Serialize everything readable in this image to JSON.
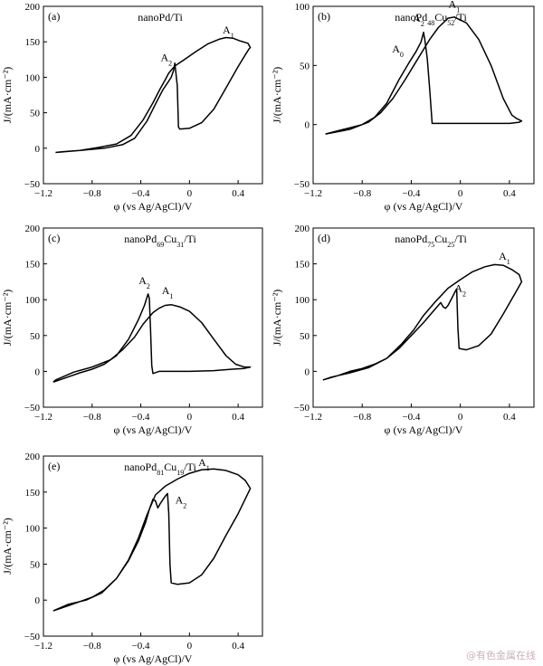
{
  "watermark": "@有色金属在线",
  "chart_data": [
    {
      "panel": "(a)",
      "title": "nanoPd/Ti",
      "title_parts": [
        {
          "t": "nanoPd/Ti"
        }
      ],
      "type": "line",
      "xlabel": "φ (vs Ag/AgCl)/V",
      "ylabel": "J/(mA·cm⁻²)",
      "xlim": [
        -1.2,
        0.6
      ],
      "ylim": [
        -50,
        200
      ],
      "xticks": [
        -1.2,
        -0.8,
        -0.4,
        0,
        0.4
      ],
      "yticks": [
        -50,
        0,
        50,
        100,
        150,
        200
      ],
      "series": [
        {
          "points": [
            [
              -1.1,
              -6
            ],
            [
              -0.9,
              -3
            ],
            [
              -0.7,
              0
            ],
            [
              -0.55,
              5
            ],
            [
              -0.45,
              14
            ],
            [
              -0.35,
              38
            ],
            [
              -0.28,
              62
            ],
            [
              -0.22,
              82
            ],
            [
              -0.18,
              92
            ],
            [
              -0.15,
              100
            ],
            [
              -0.13,
              110
            ],
            [
              -0.12,
              120
            ],
            [
              -0.1,
              88
            ],
            [
              -0.09,
              30
            ],
            [
              -0.08,
              27
            ],
            [
              0,
              28
            ],
            [
              0.1,
              36
            ],
            [
              0.2,
              55
            ],
            [
              0.3,
              85
            ],
            [
              0.4,
              115
            ],
            [
              0.46,
              132
            ],
            [
              0.49,
              140
            ],
            [
              0.5,
              142
            ],
            [
              0.48,
              148
            ],
            [
              0.42,
              151
            ],
            [
              0.36,
              155
            ],
            [
              0.3,
              156
            ],
            [
              0.25,
              154
            ],
            [
              0.15,
              147
            ],
            [
              0.05,
              136
            ],
            [
              -0.05,
              124
            ],
            [
              -0.12,
              116
            ],
            [
              -0.17,
              106
            ],
            [
              -0.2,
              96
            ],
            [
              -0.24,
              84
            ],
            [
              -0.3,
              64
            ],
            [
              -0.38,
              40
            ],
            [
              -0.48,
              18
            ],
            [
              -0.6,
              6
            ],
            [
              -0.75,
              1
            ],
            [
              -0.9,
              -3
            ],
            [
              -1.05,
              -5
            ],
            [
              -1.1,
              -6
            ]
          ]
        }
      ],
      "annotations": [
        {
          "base": "A",
          "sub": "1",
          "x": 0.32,
          "y": 162
        },
        {
          "base": "A",
          "sub": "2",
          "x": -0.19,
          "y": 123
        }
      ]
    },
    {
      "panel": "(b)",
      "title": "nanoPd48Cu52/Ti",
      "title_parts": [
        {
          "t": "nanoPd"
        },
        {
          "t": "48",
          "sub": true
        },
        {
          "t": "Cu"
        },
        {
          "t": "52",
          "sub": true
        },
        {
          "t": "/Ti"
        }
      ],
      "type": "line",
      "xlabel": "φ (vs Ag/AgCl)/V",
      "ylabel": "J/(mA·cm⁻²)",
      "xlim": [
        -1.2,
        0.6
      ],
      "ylim": [
        -50,
        100
      ],
      "xticks": [
        -1.2,
        -0.8,
        -0.4,
        0,
        0.4
      ],
      "yticks": [
        -50,
        0,
        50,
        100
      ],
      "series": [
        {
          "points": [
            [
              -1.1,
              -8
            ],
            [
              -0.95,
              -4
            ],
            [
              -0.8,
              0
            ],
            [
              -0.7,
              6
            ],
            [
              -0.6,
              18
            ],
            [
              -0.5,
              38
            ],
            [
              -0.42,
              52
            ],
            [
              -0.36,
              62
            ],
            [
              -0.32,
              70
            ],
            [
              -0.3,
              78
            ],
            [
              -0.29,
              72
            ],
            [
              -0.27,
              56
            ],
            [
              -0.25,
              30
            ],
            [
              -0.23,
              1
            ],
            [
              -0.2,
              1
            ],
            [
              0,
              1
            ],
            [
              0.2,
              1
            ],
            [
              0.4,
              1
            ],
            [
              0.48,
              2
            ],
            [
              0.5,
              3
            ],
            [
              0.46,
              5
            ],
            [
              0.42,
              8
            ],
            [
              0.35,
              22
            ],
            [
              0.25,
              50
            ],
            [
              0.15,
              72
            ],
            [
              0.05,
              86
            ],
            [
              -0.05,
              91
            ],
            [
              -0.1,
              90
            ],
            [
              -0.18,
              82
            ],
            [
              -0.25,
              72
            ],
            [
              -0.35,
              55
            ],
            [
              -0.45,
              38
            ],
            [
              -0.55,
              22
            ],
            [
              -0.65,
              10
            ],
            [
              -0.75,
              2
            ],
            [
              -0.9,
              -4
            ],
            [
              -1.1,
              -8
            ]
          ]
        }
      ],
      "annotations": [
        {
          "base": "A",
          "sub": "1",
          "x": -0.05,
          "y": 99
        },
        {
          "base": "A",
          "sub": "2",
          "x": -0.34,
          "y": 87
        },
        {
          "base": "A",
          "sub": "0",
          "x": -0.51,
          "y": 61
        }
      ]
    },
    {
      "panel": "(c)",
      "title": "nanoPd69Cu31/Ti",
      "title_parts": [
        {
          "t": "nanoPd"
        },
        {
          "t": "69",
          "sub": true
        },
        {
          "t": "Cu"
        },
        {
          "t": "31",
          "sub": true
        },
        {
          "t": "/Ti"
        }
      ],
      "type": "line",
      "xlabel": "φ (vs Ag/AgCl)/V",
      "ylabel": "J/(mA·cm⁻²)",
      "xlim": [
        -1.2,
        0.6
      ],
      "ylim": [
        -50,
        200
      ],
      "xticks": [
        -1.2,
        -0.8,
        -0.4,
        0,
        0.4
      ],
      "yticks": [
        -50,
        0,
        50,
        100,
        150,
        200
      ],
      "series": [
        {
          "points": [
            [
              -1.12,
              -15
            ],
            [
              -1.0,
              -8
            ],
            [
              -0.9,
              -2
            ],
            [
              -0.8,
              3
            ],
            [
              -0.7,
              10
            ],
            [
              -0.6,
              22
            ],
            [
              -0.5,
              45
            ],
            [
              -0.42,
              72
            ],
            [
              -0.37,
              92
            ],
            [
              -0.34,
              108
            ],
            [
              -0.33,
              102
            ],
            [
              -0.32,
              60
            ],
            [
              -0.31,
              8
            ],
            [
              -0.3,
              -3
            ],
            [
              -0.25,
              0
            ],
            [
              0,
              0
            ],
            [
              0.2,
              1
            ],
            [
              0.35,
              3
            ],
            [
              0.45,
              4
            ],
            [
              0.5,
              6
            ],
            [
              0.45,
              6
            ],
            [
              0.38,
              10
            ],
            [
              0.3,
              22
            ],
            [
              0.2,
              45
            ],
            [
              0.1,
              68
            ],
            [
              0,
              84
            ],
            [
              -0.08,
              90
            ],
            [
              -0.15,
              93
            ],
            [
              -0.2,
              92
            ],
            [
              -0.25,
              88
            ],
            [
              -0.3,
              82
            ],
            [
              -0.38,
              66
            ],
            [
              -0.45,
              48
            ],
            [
              -0.55,
              30
            ],
            [
              -0.65,
              16
            ],
            [
              -0.8,
              6
            ],
            [
              -0.95,
              -1
            ],
            [
              -1.1,
              -12
            ],
            [
              -1.12,
              -15
            ]
          ]
        }
      ],
      "annotations": [
        {
          "base": "A",
          "sub": "1",
          "x": -0.18,
          "y": 108
        },
        {
          "base": "A",
          "sub": "2",
          "x": -0.37,
          "y": 122
        }
      ]
    },
    {
      "panel": "(d)",
      "title": "nanoPd75Cu25/Ti",
      "title_parts": [
        {
          "t": "nanoPd"
        },
        {
          "t": "75",
          "sub": true
        },
        {
          "t": "Cu"
        },
        {
          "t": "25",
          "sub": true
        },
        {
          "t": "/Ti"
        }
      ],
      "type": "line",
      "xlabel": "φ (vs Ag/AgCl)/V",
      "ylabel": "J/(mA·cm⁻²)",
      "xlim": [
        -1.2,
        0.6
      ],
      "ylim": [
        -50,
        200
      ],
      "xticks": [
        -1.2,
        -0.8,
        -0.4,
        0,
        0.4
      ],
      "yticks": [
        -50,
        0,
        50,
        100,
        150,
        200
      ],
      "series": [
        {
          "points": [
            [
              -1.12,
              -12
            ],
            [
              -1.0,
              -6
            ],
            [
              -0.9,
              0
            ],
            [
              -0.8,
              4
            ],
            [
              -0.7,
              10
            ],
            [
              -0.6,
              18
            ],
            [
              -0.5,
              32
            ],
            [
              -0.4,
              50
            ],
            [
              -0.3,
              68
            ],
            [
              -0.22,
              84
            ],
            [
              -0.18,
              92
            ],
            [
              -0.16,
              96
            ],
            [
              -0.14,
              90
            ],
            [
              -0.12,
              88
            ],
            [
              -0.1,
              92
            ],
            [
              -0.07,
              102
            ],
            [
              -0.04,
              112
            ],
            [
              -0.03,
              115
            ],
            [
              -0.02,
              60
            ],
            [
              -0.01,
              32
            ],
            [
              0.05,
              30
            ],
            [
              0.15,
              36
            ],
            [
              0.25,
              52
            ],
            [
              0.35,
              80
            ],
            [
              0.45,
              110
            ],
            [
              0.5,
              125
            ],
            [
              0.48,
              135
            ],
            [
              0.42,
              142
            ],
            [
              0.35,
              148
            ],
            [
              0.28,
              149
            ],
            [
              0.2,
              146
            ],
            [
              0.1,
              139
            ],
            [
              0,
              128
            ],
            [
              -0.1,
              116
            ],
            [
              -0.2,
              98
            ],
            [
              -0.3,
              78
            ],
            [
              -0.38,
              58
            ],
            [
              -0.48,
              38
            ],
            [
              -0.6,
              18
            ],
            [
              -0.75,
              5
            ],
            [
              -0.9,
              -2
            ],
            [
              -1.05,
              -8
            ],
            [
              -1.12,
              -12
            ]
          ]
        }
      ],
      "annotations": [
        {
          "base": "A",
          "sub": "1",
          "x": 0.36,
          "y": 156
        },
        {
          "base": "A",
          "sub": "2",
          "x": 0.0,
          "y": 111
        }
      ]
    },
    {
      "panel": "(e)",
      "title": "nanoPd81Cu19/Ti",
      "title_parts": [
        {
          "t": "nanoPd"
        },
        {
          "t": "81",
          "sub": true
        },
        {
          "t": "Cu"
        },
        {
          "t": "19",
          "sub": true
        },
        {
          "t": "/Ti"
        }
      ],
      "type": "line",
      "xlabel": "φ (vs Ag/AgCl)/V",
      "ylabel": "J/(mA·cm⁻²)",
      "xlim": [
        -1.2,
        0.6
      ],
      "ylim": [
        -50,
        200
      ],
      "xticks": [
        -1.2,
        -0.8,
        -0.4,
        0,
        0.4
      ],
      "yticks": [
        -50,
        0,
        50,
        100,
        150,
        200
      ],
      "series": [
        {
          "points": [
            [
              -1.12,
              -15
            ],
            [
              -1.0,
              -8
            ],
            [
              -0.9,
              -2
            ],
            [
              -0.8,
              4
            ],
            [
              -0.7,
              14
            ],
            [
              -0.6,
              30
            ],
            [
              -0.5,
              55
            ],
            [
              -0.42,
              82
            ],
            [
              -0.36,
              108
            ],
            [
              -0.33,
              126
            ],
            [
              -0.3,
              140
            ],
            [
              -0.28,
              138
            ],
            [
              -0.26,
              128
            ],
            [
              -0.24,
              134
            ],
            [
              -0.2,
              144
            ],
            [
              -0.18,
              148
            ],
            [
              -0.17,
              120
            ],
            [
              -0.16,
              50
            ],
            [
              -0.15,
              24
            ],
            [
              -0.1,
              22
            ],
            [
              0,
              24
            ],
            [
              0.1,
              35
            ],
            [
              0.2,
              58
            ],
            [
              0.3,
              90
            ],
            [
              0.4,
              120
            ],
            [
              0.48,
              148
            ],
            [
              0.5,
              155
            ],
            [
              0.46,
              166
            ],
            [
              0.4,
              174
            ],
            [
              0.3,
              180
            ],
            [
              0.2,
              182
            ],
            [
              0.1,
              181
            ],
            [
              0,
              176
            ],
            [
              -0.1,
              168
            ],
            [
              -0.2,
              158
            ],
            [
              -0.28,
              146
            ],
            [
              -0.35,
              118
            ],
            [
              -0.42,
              86
            ],
            [
              -0.5,
              56
            ],
            [
              -0.6,
              30
            ],
            [
              -0.72,
              10
            ],
            [
              -0.85,
              0
            ],
            [
              -1.0,
              -6
            ],
            [
              -1.12,
              -15
            ]
          ]
        }
      ],
      "annotations": [
        {
          "base": "A",
          "sub": "1",
          "x": 0.12,
          "y": 186
        },
        {
          "base": "A",
          "sub": "2",
          "x": -0.07,
          "y": 134
        }
      ]
    }
  ]
}
